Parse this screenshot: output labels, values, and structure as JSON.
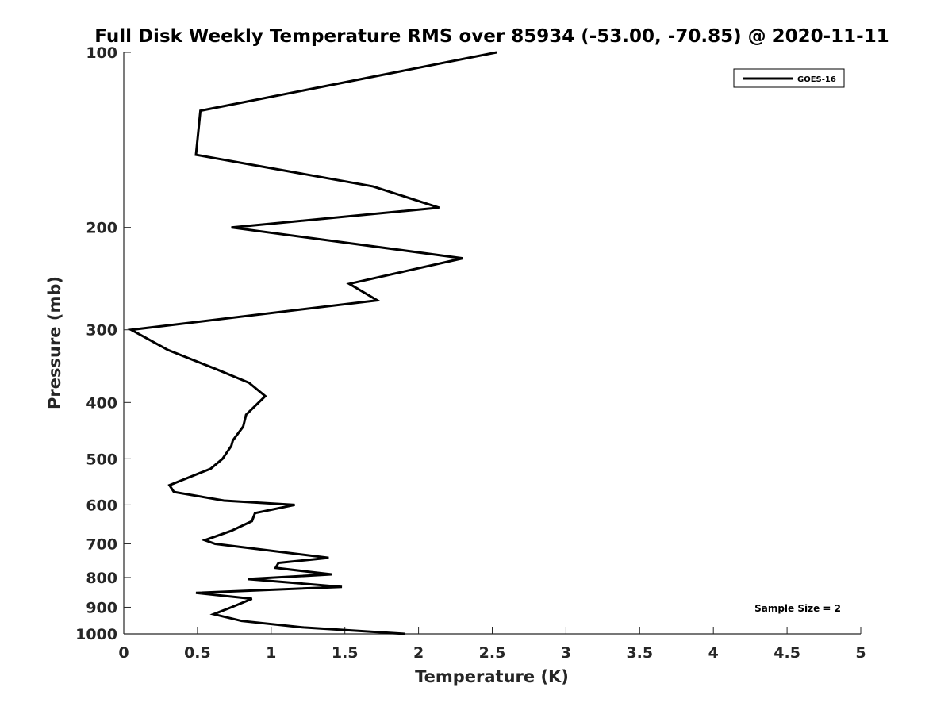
{
  "chart_data": {
    "type": "line",
    "title": "Full Disk Weekly Temperature RMS over 85934 (-53.00, -70.85) @ 2020-11-11",
    "xlabel": "Temperature (K)",
    "ylabel": "Pressure (mb)",
    "xlim": [
      0,
      5
    ],
    "ylim": [
      1000,
      100
    ],
    "y_scale": "log",
    "y_reversed": true,
    "grid": false,
    "legend_position": "top-right",
    "x_ticks": [
      "0",
      "0.5",
      "1",
      "1.5",
      "2",
      "2.5",
      "3",
      "3.5",
      "4",
      "4.5",
      "5"
    ],
    "y_ticks": [
      "100",
      "200",
      "300",
      "400",
      "500",
      "600",
      "700",
      "800",
      "900",
      "1000"
    ],
    "annotation": "Sample Size = 2",
    "series": [
      {
        "name": "GOES-16",
        "color": "#000000",
        "points": [
          [
            2.53,
            100
          ],
          [
            0.52,
            126
          ],
          [
            0.49,
            150
          ],
          [
            1.69,
            170
          ],
          [
            2.14,
            185
          ],
          [
            0.73,
            200
          ],
          [
            2.3,
            226
          ],
          [
            1.53,
            250
          ],
          [
            1.72,
            267
          ],
          [
            0.05,
            300
          ],
          [
            0.3,
            325
          ],
          [
            0.62,
            350
          ],
          [
            0.85,
            370
          ],
          [
            0.96,
            390
          ],
          [
            0.83,
            420
          ],
          [
            0.81,
            440
          ],
          [
            0.74,
            465
          ],
          [
            0.73,
            475
          ],
          [
            0.67,
            500
          ],
          [
            0.59,
            520
          ],
          [
            0.31,
            555
          ],
          [
            0.34,
            570
          ],
          [
            0.68,
            590
          ],
          [
            1.16,
            600
          ],
          [
            0.89,
            620
          ],
          [
            0.87,
            640
          ],
          [
            0.73,
            665
          ],
          [
            0.55,
            690
          ],
          [
            0.62,
            700
          ],
          [
            1.39,
            740
          ],
          [
            1.05,
            755
          ],
          [
            1.03,
            770
          ],
          [
            1.41,
            790
          ],
          [
            0.84,
            805
          ],
          [
            1.48,
            830
          ],
          [
            0.49,
            850
          ],
          [
            0.87,
            870
          ],
          [
            0.73,
            900
          ],
          [
            0.61,
            925
          ],
          [
            0.8,
            950
          ],
          [
            1.22,
            975
          ],
          [
            1.91,
            1000
          ]
        ]
      }
    ]
  }
}
